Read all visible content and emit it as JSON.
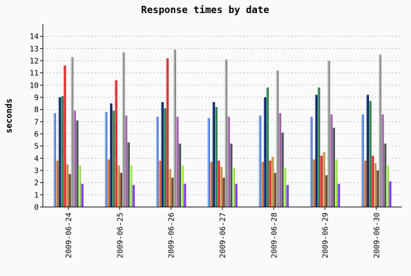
{
  "chart_data": {
    "type": "bar",
    "title": "Response times by date",
    "xlabel": "",
    "ylabel": "seconds",
    "ylim": [
      0,
      15
    ],
    "yticks": [
      0,
      1,
      2,
      3,
      4,
      5,
      6,
      7,
      8,
      9,
      10,
      11,
      12,
      13,
      14
    ],
    "grid": true,
    "legend": "none",
    "categories": [
      "2009-06-24",
      "2009-06-25",
      "2009-06-26",
      "2009-06-27",
      "2009-06-28",
      "2009-06-29",
      "2009-06-30"
    ],
    "series": [
      {
        "color": "#6495ed",
        "values": [
          7.7,
          7.8,
          7.4,
          7.3,
          7.5,
          7.4,
          7.6
        ]
      },
      {
        "color": "#e07b39",
        "values": [
          3.8,
          3.9,
          3.8,
          3.7,
          3.7,
          3.9,
          3.8
        ]
      },
      {
        "color": "#0a2472",
        "values": [
          9.0,
          8.5,
          8.6,
          8.6,
          9.0,
          9.2,
          9.2
        ]
      },
      {
        "color": "#2e8b57",
        "values": [
          9.1,
          7.9,
          8.1,
          8.2,
          9.8,
          9.8,
          8.7
        ]
      },
      {
        "color": "#e83030",
        "values": [
          11.6,
          10.4,
          12.2,
          3.8,
          3.8,
          4.2,
          4.2
        ]
      },
      {
        "color": "#d4a050",
        "values": [
          3.5,
          3.4,
          3.1,
          3.3,
          4.1,
          4.5,
          3.6
        ]
      },
      {
        "color": "#7a4a30",
        "values": [
          2.7,
          2.8,
          2.4,
          2.4,
          2.8,
          2.6,
          3.0
        ]
      },
      {
        "color": "#9aa39c",
        "values": [
          12.3,
          12.7,
          12.9,
          12.1,
          11.2,
          12.0,
          12.5
        ]
      },
      {
        "color": "#b070b8",
        "values": [
          7.9,
          7.5,
          7.4,
          7.4,
          7.7,
          7.6,
          7.6
        ]
      },
      {
        "color": "#555a60",
        "values": [
          7.1,
          5.3,
          5.2,
          5.2,
          6.1,
          6.5,
          5.2
        ]
      },
      {
        "color": "#aaff55",
        "values": [
          3.4,
          3.4,
          3.4,
          3.2,
          3.2,
          3.9,
          3.4
        ]
      },
      {
        "color": "#8a3cff",
        "values": [
          1.9,
          1.8,
          1.9,
          1.9,
          1.8,
          1.9,
          2.1
        ]
      }
    ]
  }
}
